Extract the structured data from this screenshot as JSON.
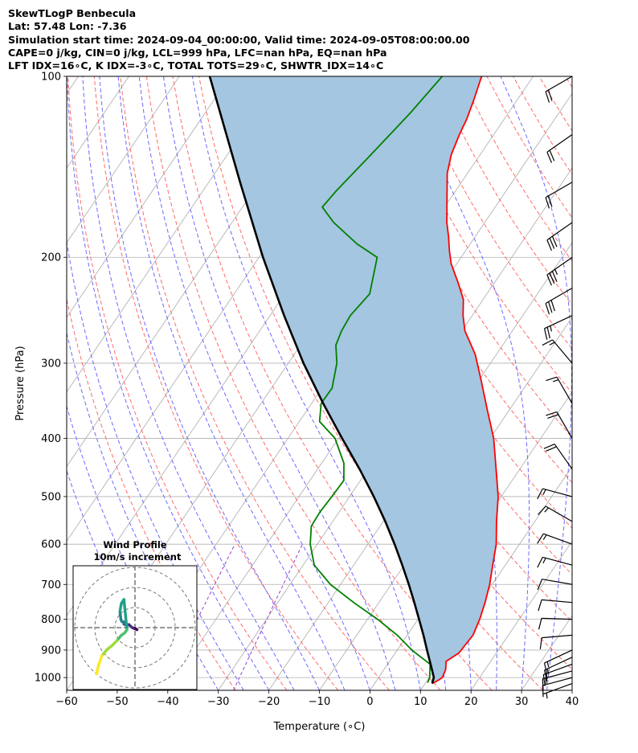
{
  "header": {
    "line1": "SkewTLogP Benbecula",
    "line2": "Lat: 57.48   Lon: -7.36",
    "line3": "Simulation start time: 2024-09-04_00:00:00, Valid time: 2024-09-05T08:00:00.00",
    "line4": "CAPE=0 j/kg, CIN=0 j/kg, LCL=999 hPa, LFC=nan hPa, EQ=nan hPa",
    "line5": "LFT IDX=16∘C, K IDX=-3∘C, TOTAL TOTS=29∘C, SHWTR_IDX=14∘C"
  },
  "colors": {
    "temperature": "#ff0000",
    "dewpoint": "#008000",
    "parcel": "#000000",
    "cape_fill": "#a4c6e0",
    "dry_adiabat": "#ff6b6b",
    "moist_adiabat": "#6a6aff",
    "mixing_ratio": "#9a3cc8",
    "isotherm": "#aaaaaa"
  },
  "chart_data": {
    "type": "line",
    "title": "SkewTLogP Benbecula",
    "xlabel": "Temperature (∘C)",
    "ylabel": "Pressure (hPa)",
    "xlim": [
      -60,
      40
    ],
    "ylim": [
      1050,
      100
    ],
    "x_ticks": [
      -60,
      -50,
      -40,
      -30,
      -20,
      -10,
      0,
      10,
      20,
      30,
      40
    ],
    "x_tick_labels": [
      "−60",
      "−50",
      "−40",
      "−30",
      "−20",
      "−10",
      "0",
      "10",
      "20",
      "30",
      "40"
    ],
    "y_ticks": [
      1000,
      900,
      800,
      700,
      600,
      500,
      400,
      300,
      200,
      100
    ],
    "y_tick_labels": [
      "1000",
      "900",
      "800",
      "700",
      "600",
      "500",
      "400",
      "300",
      "200",
      "100"
    ],
    "grid": true,
    "series": [
      {
        "name": "temperature",
        "points": [
          [
            1023,
            11.4
          ],
          [
            1010,
            12.2
          ],
          [
            1000,
            12.6
          ],
          [
            970,
            12.2
          ],
          [
            940,
            11.2
          ],
          [
            910,
            12.6
          ],
          [
            850,
            13.0
          ],
          [
            800,
            12.2
          ],
          [
            750,
            11.0
          ],
          [
            700,
            9.5
          ],
          [
            650,
            7.5
          ],
          [
            600,
            5.4
          ],
          [
            550,
            2.4
          ],
          [
            500,
            -0.6
          ],
          [
            450,
            -4.7
          ],
          [
            400,
            -9.3
          ],
          [
            360,
            -14.2
          ],
          [
            320,
            -19.6
          ],
          [
            290,
            -24.2
          ],
          [
            265,
            -29.4
          ],
          [
            250,
            -31.8
          ],
          [
            235,
            -33.9
          ],
          [
            220,
            -37.3
          ],
          [
            205,
            -41.1
          ],
          [
            195,
            -43.2
          ],
          [
            185,
            -45.2
          ],
          [
            175,
            -47.5
          ],
          [
            160,
            -50.6
          ],
          [
            145,
            -54.0
          ],
          [
            135,
            -55.7
          ],
          [
            125,
            -56.8
          ],
          [
            118,
            -57.4
          ],
          [
            110,
            -58.5
          ],
          [
            100,
            -60.2
          ]
        ]
      },
      {
        "name": "dewpoint",
        "points": [
          [
            1020,
            10.4
          ],
          [
            1000,
            10.1
          ],
          [
            950,
            8.4
          ],
          [
            900,
            2.9
          ],
          [
            850,
            -2.0
          ],
          [
            800,
            -8.0
          ],
          [
            750,
            -15.0
          ],
          [
            700,
            -22.0
          ],
          [
            650,
            -27.8
          ],
          [
            600,
            -31.4
          ],
          [
            560,
            -33.6
          ],
          [
            530,
            -33.8
          ],
          [
            500,
            -33.5
          ],
          [
            470,
            -33.3
          ],
          [
            440,
            -35.6
          ],
          [
            400,
            -40.7
          ],
          [
            375,
            -46.0
          ],
          [
            350,
            -48.1
          ],
          [
            330,
            -48.0
          ],
          [
            300,
            -50.4
          ],
          [
            280,
            -53.0
          ],
          [
            265,
            -53.8
          ],
          [
            250,
            -54.1
          ],
          [
            230,
            -53.2
          ],
          [
            200,
            -56.6
          ],
          [
            190,
            -62.4
          ],
          [
            175,
            -69.9
          ],
          [
            165,
            -74.2
          ],
          [
            155,
            -73.6
          ],
          [
            135,
            -71.6
          ],
          [
            115,
            -69.4
          ],
          [
            100,
            -68.0
          ]
        ]
      },
      {
        "name": "parcel",
        "points": [
          [
            1023,
            11.4
          ],
          [
            999,
            10.9
          ],
          [
            950,
            8.5
          ],
          [
            900,
            5.9
          ],
          [
            850,
            3.2
          ],
          [
            800,
            0.2
          ],
          [
            750,
            -3.0
          ],
          [
            700,
            -6.5
          ],
          [
            650,
            -10.4
          ],
          [
            600,
            -14.7
          ],
          [
            550,
            -19.6
          ],
          [
            500,
            -25.2
          ],
          [
            450,
            -31.7
          ],
          [
            400,
            -39.3
          ],
          [
            350,
            -47.7
          ],
          [
            300,
            -57.0
          ],
          [
            250,
            -67.2
          ],
          [
            200,
            -79.2
          ],
          [
            150,
            -93.8
          ],
          [
            100,
            -114.0
          ]
        ]
      }
    ],
    "wind_barbs": [
      {
        "p": 1023,
        "speed_kt": 5,
        "dir_deg": 250
      },
      {
        "p": 1000,
        "speed_kt": 10,
        "dir_deg": 255
      },
      {
        "p": 975,
        "speed_kt": 15,
        "dir_deg": 255
      },
      {
        "p": 950,
        "speed_kt": 15,
        "dir_deg": 250
      },
      {
        "p": 925,
        "speed_kt": 15,
        "dir_deg": 245
      },
      {
        "p": 900,
        "speed_kt": 15,
        "dir_deg": 245
      },
      {
        "p": 850,
        "speed_kt": 10,
        "dir_deg": 265
      },
      {
        "p": 800,
        "speed_kt": 10,
        "dir_deg": 272
      },
      {
        "p": 750,
        "speed_kt": 10,
        "dir_deg": 275
      },
      {
        "p": 700,
        "speed_kt": 10,
        "dir_deg": 280
      },
      {
        "p": 650,
        "speed_kt": 15,
        "dir_deg": 285
      },
      {
        "p": 600,
        "speed_kt": 15,
        "dir_deg": 290
      },
      {
        "p": 550,
        "speed_kt": 15,
        "dir_deg": 300
      },
      {
        "p": 500,
        "speed_kt": 15,
        "dir_deg": 285
      },
      {
        "p": 450,
        "speed_kt": 20,
        "dir_deg": 325
      },
      {
        "p": 400,
        "speed_kt": 20,
        "dir_deg": 330
      },
      {
        "p": 350,
        "speed_kt": 15,
        "dir_deg": 330
      },
      {
        "p": 300,
        "speed_kt": 15,
        "dir_deg": 320
      },
      {
        "p": 250,
        "speed_kt": 25,
        "dir_deg": 245
      },
      {
        "p": 225,
        "speed_kt": 30,
        "dir_deg": 240
      },
      {
        "p": 200,
        "speed_kt": 35,
        "dir_deg": 235
      },
      {
        "p": 175,
        "speed_kt": 30,
        "dir_deg": 235
      },
      {
        "p": 150,
        "speed_kt": 20,
        "dir_deg": 240
      },
      {
        "p": 125,
        "speed_kt": 20,
        "dir_deg": 235
      },
      {
        "p": 100,
        "speed_kt": 20,
        "dir_deg": 240
      }
    ],
    "hodograph": {
      "title": "Wind Profile",
      "subtitle": "10m/s increment",
      "rings_ms": [
        10,
        20,
        30
      ],
      "points": [
        [
          1.0,
          -1.0
        ],
        [
          0.6,
          -0.8
        ],
        [
          0.0,
          -0.4
        ],
        [
          -1.0,
          -0.2
        ],
        [
          -2.0,
          0.5
        ],
        [
          -3.0,
          1.5
        ],
        [
          -4.0,
          1.2
        ],
        [
          -5.0,
          1.5
        ],
        [
          -5.5,
          1.8
        ],
        [
          -5.5,
          2.8
        ],
        [
          -6.5,
          3.0
        ],
        [
          -7.0,
          4.0
        ],
        [
          -7.5,
          8.0
        ],
        [
          -6.8,
          12.0
        ],
        [
          -5.5,
          14.0
        ],
        [
          -4.0,
          -1.0
        ],
        [
          -5.0,
          -2.5
        ],
        [
          -7.0,
          -4.0
        ],
        [
          -9.0,
          -6.5
        ],
        [
          -11.5,
          -9.0
        ],
        [
          -14.0,
          -11.0
        ],
        [
          -16.5,
          -14.0
        ],
        [
          -17.5,
          -17.0
        ],
        [
          -18.5,
          -20.0
        ],
        [
          -19.0,
          -23.0
        ]
      ]
    }
  }
}
